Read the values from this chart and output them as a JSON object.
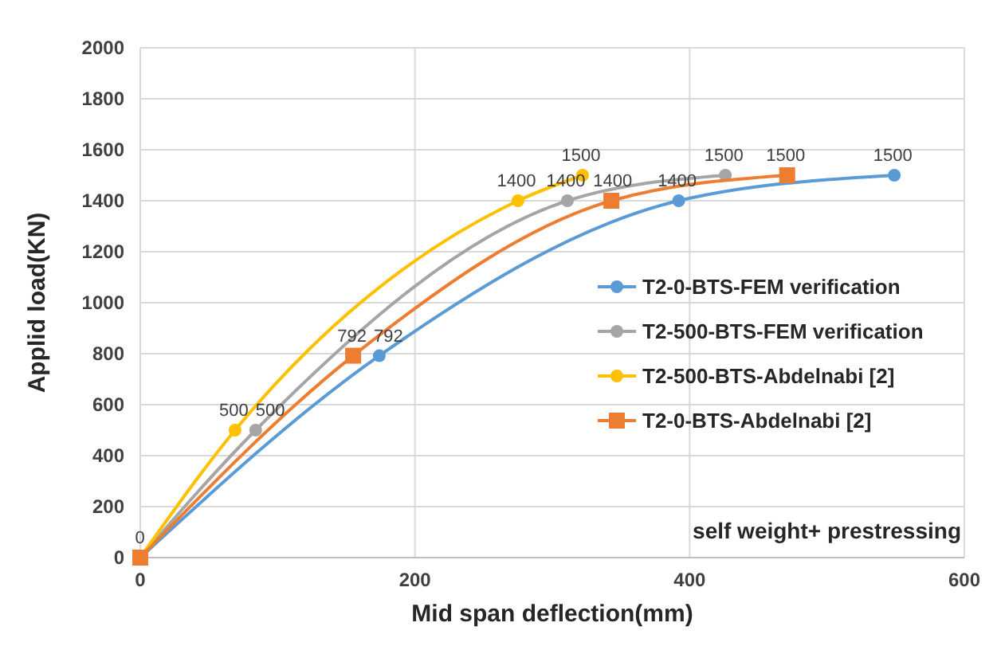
{
  "chart_data": {
    "type": "line",
    "xlabel": "Mid span deflection(mm)",
    "ylabel": "Applid load(KN)",
    "xlim": [
      0,
      600
    ],
    "xticks": [
      0,
      200,
      400,
      600
    ],
    "ylim": [
      0,
      2000
    ],
    "yticks": [
      0,
      200,
      400,
      600,
      800,
      1000,
      1200,
      1400,
      1600,
      1800,
      2000
    ],
    "grid": true,
    "legend": "right",
    "line_style": "solid",
    "annotations": [
      "self weight+ prestressing"
    ],
    "series": [
      {
        "name": "T2-0-BTS-FEM verification",
        "color": "#5b9bd5",
        "marker": "circle",
        "x": [
          0,
          174,
          392,
          549
        ],
        "values": [
          0,
          792,
          1400,
          1500
        ],
        "value_labels": [
          null,
          "792",
          "1400",
          "1500"
        ]
      },
      {
        "name": "T2-500-BTS-FEM verification",
        "color": "#a5a5a5",
        "marker": "circle",
        "x": [
          0,
          84,
          311,
          426
        ],
        "values": [
          0,
          500,
          1400,
          1500
        ],
        "value_labels": [
          null,
          "500",
          "1400",
          "1500"
        ]
      },
      {
        "name": "T2-500-BTS-Abdelnabi [2]",
        "color": "#ffc000",
        "marker": "circle",
        "x": [
          0,
          69,
          275,
          322
        ],
        "values": [
          0,
          500,
          1400,
          1500
        ],
        "value_labels": [
          null,
          "500",
          "1400",
          "1500"
        ]
      },
      {
        "name": "T2-0-BTS-Abdelnabi [2]",
        "color": "#ed7d31",
        "marker": "square",
        "x": [
          0,
          155,
          343,
          471
        ],
        "values": [
          0,
          792,
          1400,
          1500
        ],
        "value_labels": [
          "0",
          "792",
          "1400",
          "1500"
        ]
      }
    ]
  }
}
